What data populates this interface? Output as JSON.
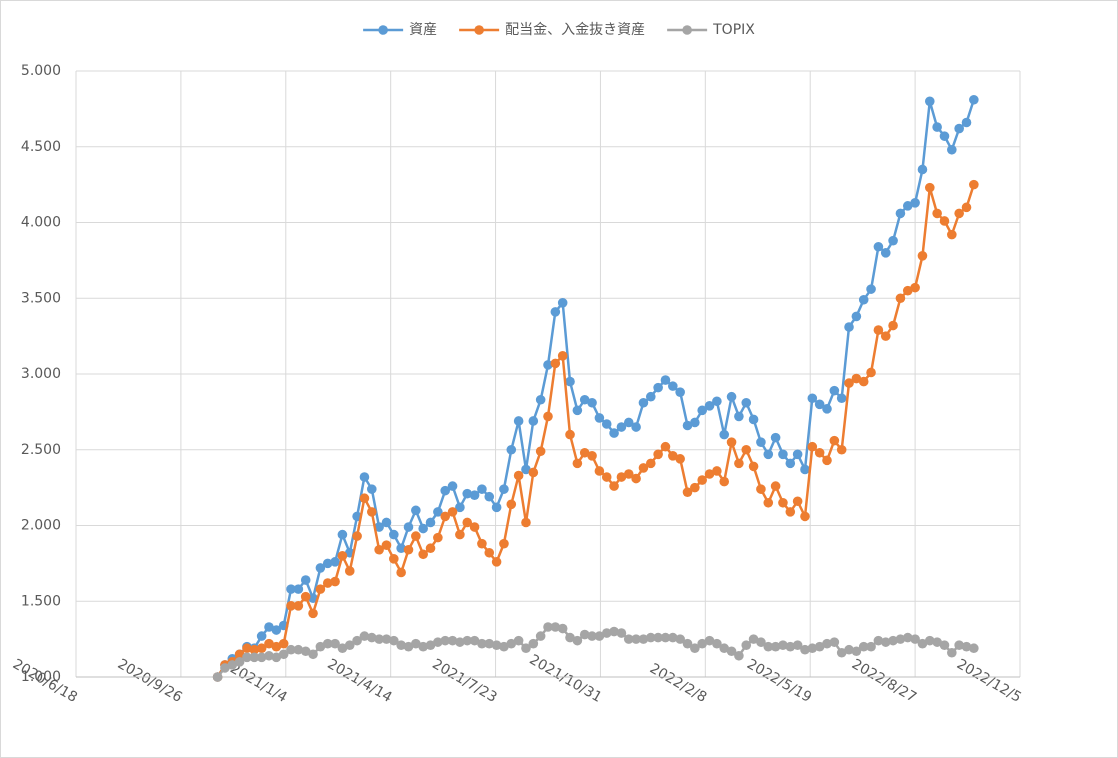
{
  "chart_data": {
    "type": "line",
    "x": [
      "2020/10/31",
      "2020/11/7",
      "2020/11/14",
      "2020/11/21",
      "2020/11/28",
      "2020/12/5",
      "2020/12/12",
      "2020/12/19",
      "2020/12/26",
      "2021/1/2",
      "2021/1/9",
      "2021/1/16",
      "2021/1/23",
      "2021/1/30",
      "2021/2/6",
      "2021/2/13",
      "2021/2/20",
      "2021/2/27",
      "2021/3/6",
      "2021/3/13",
      "2021/3/20",
      "2021/3/27",
      "2021/4/3",
      "2021/4/10",
      "2021/4/17",
      "2021/4/24",
      "2021/5/1",
      "2021/5/8",
      "2021/5/15",
      "2021/5/22",
      "2021/5/29",
      "2021/6/5",
      "2021/6/12",
      "2021/6/19",
      "2021/6/26",
      "2021/7/3",
      "2021/7/10",
      "2021/7/17",
      "2021/7/24",
      "2021/7/31",
      "2021/8/7",
      "2021/8/14",
      "2021/8/21",
      "2021/8/28",
      "2021/9/4",
      "2021/9/11",
      "2021/9/18",
      "2021/9/25",
      "2021/10/2",
      "2021/10/9",
      "2021/10/16",
      "2021/10/23",
      "2021/10/30",
      "2021/11/6",
      "2021/11/13",
      "2021/11/20",
      "2021/11/27",
      "2021/12/4",
      "2021/12/11",
      "2021/12/18",
      "2021/12/25",
      "2022/1/1",
      "2022/1/8",
      "2022/1/15",
      "2022/1/22",
      "2022/1/29",
      "2022/2/5",
      "2022/2/12",
      "2022/2/19",
      "2022/2/26",
      "2022/3/5",
      "2022/3/12",
      "2022/3/19",
      "2022/3/26",
      "2022/4/2",
      "2022/4/9",
      "2022/4/16",
      "2022/4/23",
      "2022/4/30",
      "2022/5/7",
      "2022/5/14",
      "2022/5/21",
      "2022/5/28",
      "2022/6/4",
      "2022/6/11",
      "2022/6/18",
      "2022/6/25",
      "2022/7/2",
      "2022/7/9",
      "2022/7/16",
      "2022/7/23",
      "2022/7/30",
      "2022/8/6",
      "2022/8/13",
      "2022/8/20",
      "2022/8/27",
      "2022/9/3",
      "2022/9/10",
      "2022/9/17",
      "2022/9/24",
      "2022/10/1",
      "2022/10/8",
      "2022/10/15",
      "2022/10/22"
    ],
    "series": [
      {
        "name": "資産",
        "color": "#5b9bd5",
        "values": [
          1.0,
          1.08,
          1.12,
          1.15,
          1.2,
          1.19,
          1.27,
          1.33,
          1.31,
          1.34,
          1.58,
          1.58,
          1.64,
          1.52,
          1.72,
          1.75,
          1.76,
          1.94,
          1.82,
          2.06,
          2.32,
          2.24,
          1.99,
          2.02,
          1.94,
          1.85,
          1.99,
          2.1,
          1.98,
          2.02,
          2.09,
          2.23,
          2.26,
          2.12,
          2.21,
          2.2,
          2.24,
          2.19,
          2.12,
          2.24,
          2.5,
          2.69,
          2.37,
          2.69,
          2.83,
          3.06,
          3.41,
          3.47,
          2.95,
          2.76,
          2.83,
          2.81,
          2.71,
          2.67,
          2.61,
          2.65,
          2.68,
          2.65,
          2.81,
          2.85,
          2.91,
          2.96,
          2.92,
          2.88,
          2.66,
          2.68,
          2.76,
          2.79,
          2.82,
          2.6,
          2.85,
          2.72,
          2.81,
          2.7,
          2.55,
          2.47,
          2.58,
          2.47,
          2.41,
          2.47,
          2.37,
          2.84,
          2.8,
          2.77,
          2.89,
          2.84,
          3.31,
          3.38,
          3.49,
          3.56,
          3.84,
          3.8,
          3.88,
          4.06,
          4.11,
          4.13,
          4.35,
          4.8,
          4.63,
          4.57,
          4.48,
          4.62,
          4.66,
          4.81
        ]
      },
      {
        "name": "配当金、入金抜き資産",
        "color": "#ed7d31",
        "values": [
          1.0,
          1.08,
          1.1,
          1.15,
          1.19,
          1.18,
          1.19,
          1.22,
          1.2,
          1.22,
          1.47,
          1.47,
          1.53,
          1.42,
          1.58,
          1.62,
          1.63,
          1.8,
          1.7,
          1.93,
          2.18,
          2.09,
          1.84,
          1.87,
          1.78,
          1.69,
          1.84,
          1.93,
          1.81,
          1.85,
          1.92,
          2.06,
          2.09,
          1.94,
          2.02,
          1.99,
          1.88,
          1.82,
          1.76,
          1.88,
          2.14,
          2.33,
          2.02,
          2.35,
          2.49,
          2.72,
          3.07,
          3.12,
          2.6,
          2.41,
          2.48,
          2.46,
          2.36,
          2.32,
          2.26,
          2.32,
          2.34,
          2.31,
          2.38,
          2.41,
          2.47,
          2.52,
          2.46,
          2.44,
          2.22,
          2.25,
          2.3,
          2.34,
          2.36,
          2.29,
          2.55,
          2.41,
          2.5,
          2.39,
          2.24,
          2.15,
          2.26,
          2.15,
          2.09,
          2.16,
          2.06,
          2.52,
          2.48,
          2.43,
          2.56,
          2.5,
          2.94,
          2.97,
          2.95,
          3.01,
          3.29,
          3.25,
          3.32,
          3.5,
          3.55,
          3.57,
          3.78,
          4.23,
          4.06,
          4.01,
          3.92,
          4.06,
          4.1,
          4.25
        ]
      },
      {
        "name": "TOPIX",
        "color": "#a5a5a5",
        "values": [
          1.0,
          1.06,
          1.08,
          1.1,
          1.13,
          1.13,
          1.13,
          1.14,
          1.13,
          1.15,
          1.18,
          1.18,
          1.17,
          1.15,
          1.2,
          1.22,
          1.22,
          1.19,
          1.21,
          1.24,
          1.27,
          1.26,
          1.25,
          1.25,
          1.24,
          1.21,
          1.2,
          1.22,
          1.2,
          1.21,
          1.23,
          1.24,
          1.24,
          1.23,
          1.24,
          1.24,
          1.22,
          1.22,
          1.21,
          1.2,
          1.22,
          1.24,
          1.19,
          1.22,
          1.27,
          1.33,
          1.33,
          1.32,
          1.26,
          1.24,
          1.28,
          1.27,
          1.27,
          1.29,
          1.3,
          1.29,
          1.25,
          1.25,
          1.25,
          1.26,
          1.26,
          1.26,
          1.26,
          1.25,
          1.22,
          1.19,
          1.22,
          1.24,
          1.22,
          1.19,
          1.17,
          1.14,
          1.21,
          1.25,
          1.23,
          1.2,
          1.2,
          1.21,
          1.2,
          1.21,
          1.18,
          1.19,
          1.2,
          1.22,
          1.23,
          1.16,
          1.18,
          1.17,
          1.2,
          1.2,
          1.24,
          1.23,
          1.24,
          1.25,
          1.26,
          1.25,
          1.22,
          1.24,
          1.23,
          1.21,
          1.16,
          1.21,
          1.2,
          1.19
        ]
      }
    ],
    "xlim": [
      "2020/6/18",
      "2022/12/5"
    ],
    "xticks": [
      "2020/6/18",
      "2020/9/26",
      "2021/1/4",
      "2021/4/14",
      "2021/7/23",
      "2021/10/31",
      "2022/2/8",
      "2022/5/19",
      "2022/8/27",
      "2022/12/5"
    ],
    "ylim": [
      1,
      5
    ],
    "yticks": [
      {
        "value": 1,
        "label": "1.000"
      },
      {
        "value": 1.5,
        "label": "1.500"
      },
      {
        "value": 2,
        "label": "2.000"
      },
      {
        "value": 2.5,
        "label": "2.500"
      },
      {
        "value": 3,
        "label": "3.000"
      },
      {
        "value": 3.5,
        "label": "3.500"
      },
      {
        "value": 4,
        "label": "4.000"
      },
      {
        "value": 4.5,
        "label": "4.500"
      },
      {
        "value": 5,
        "label": "5.000"
      }
    ],
    "grid": true,
    "legend": "top",
    "markers": true
  }
}
